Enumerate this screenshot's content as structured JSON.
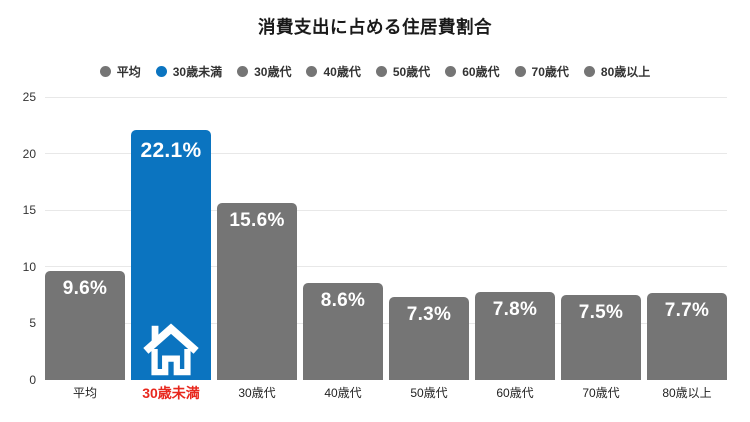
{
  "title": "消費支出に占める住居費割合",
  "colors": {
    "bar_default": "#757575",
    "bar_highlight": "#0b74c0",
    "highlight_label": "#e8281e",
    "grid": "#e8e8e8",
    "axis_text": "#333333",
    "value_text": "#ffffff"
  },
  "chart_data": {
    "type": "bar",
    "title": "消費支出に占める住居費割合",
    "categories": [
      "平均",
      "30歳未満",
      "30歳代",
      "40歳代",
      "50歳代",
      "60歳代",
      "70歳代",
      "80歳以上"
    ],
    "values": [
      9.6,
      22.1,
      15.6,
      8.6,
      7.3,
      7.8,
      7.5,
      7.7
    ],
    "value_labels": [
      "9.6%",
      "22.1%",
      "15.6%",
      "8.6%",
      "7.3%",
      "7.8%",
      "7.5%",
      "7.7%"
    ],
    "highlight_index": 1,
    "highlight_marker": "house-icon",
    "legend": [
      "平均",
      "30歳未満",
      "30歳代",
      "40歳代",
      "50歳代",
      "60歳代",
      "70歳代",
      "80歳以上"
    ],
    "legend_position": "top",
    "xlabel": "",
    "ylabel": "",
    "ylim": [
      0,
      25
    ],
    "yticks": [
      0,
      5,
      10,
      15,
      20,
      25
    ],
    "grid": true
  }
}
